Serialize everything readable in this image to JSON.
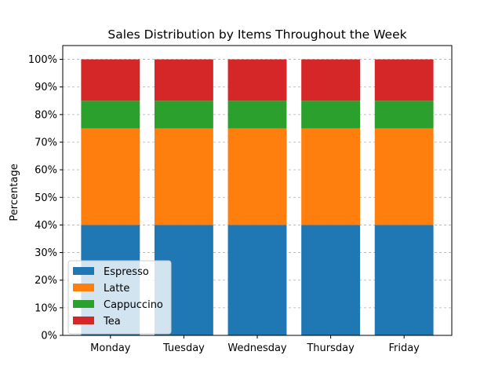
{
  "chart_data": {
    "type": "bar",
    "stacked": true,
    "title": "Sales Distribution by Items Throughout the Week",
    "xlabel": "",
    "ylabel": "Percentage",
    "categories": [
      "Monday",
      "Tuesday",
      "Wednesday",
      "Thursday",
      "Friday"
    ],
    "series": [
      {
        "name": "Espresso",
        "values": [
          40,
          40,
          40,
          40,
          40
        ],
        "color": "#1f77b4"
      },
      {
        "name": "Latte",
        "values": [
          35,
          35,
          35,
          35,
          35
        ],
        "color": "#ff7f0e"
      },
      {
        "name": "Cappuccino",
        "values": [
          10,
          10,
          10,
          10,
          10
        ],
        "color": "#2ca02c"
      },
      {
        "name": "Tea",
        "values": [
          15,
          15,
          15,
          15,
          15
        ],
        "color": "#d62728"
      }
    ],
    "ylim": [
      0,
      105
    ],
    "yticks": [
      0,
      10,
      20,
      30,
      40,
      50,
      60,
      70,
      80,
      90,
      100
    ],
    "ytick_labels": [
      "0%",
      "10%",
      "20%",
      "30%",
      "40%",
      "50%",
      "60%",
      "70%",
      "80%",
      "90%",
      "100%"
    ],
    "grid": "y-dashed",
    "legend_position": "lower-left"
  }
}
